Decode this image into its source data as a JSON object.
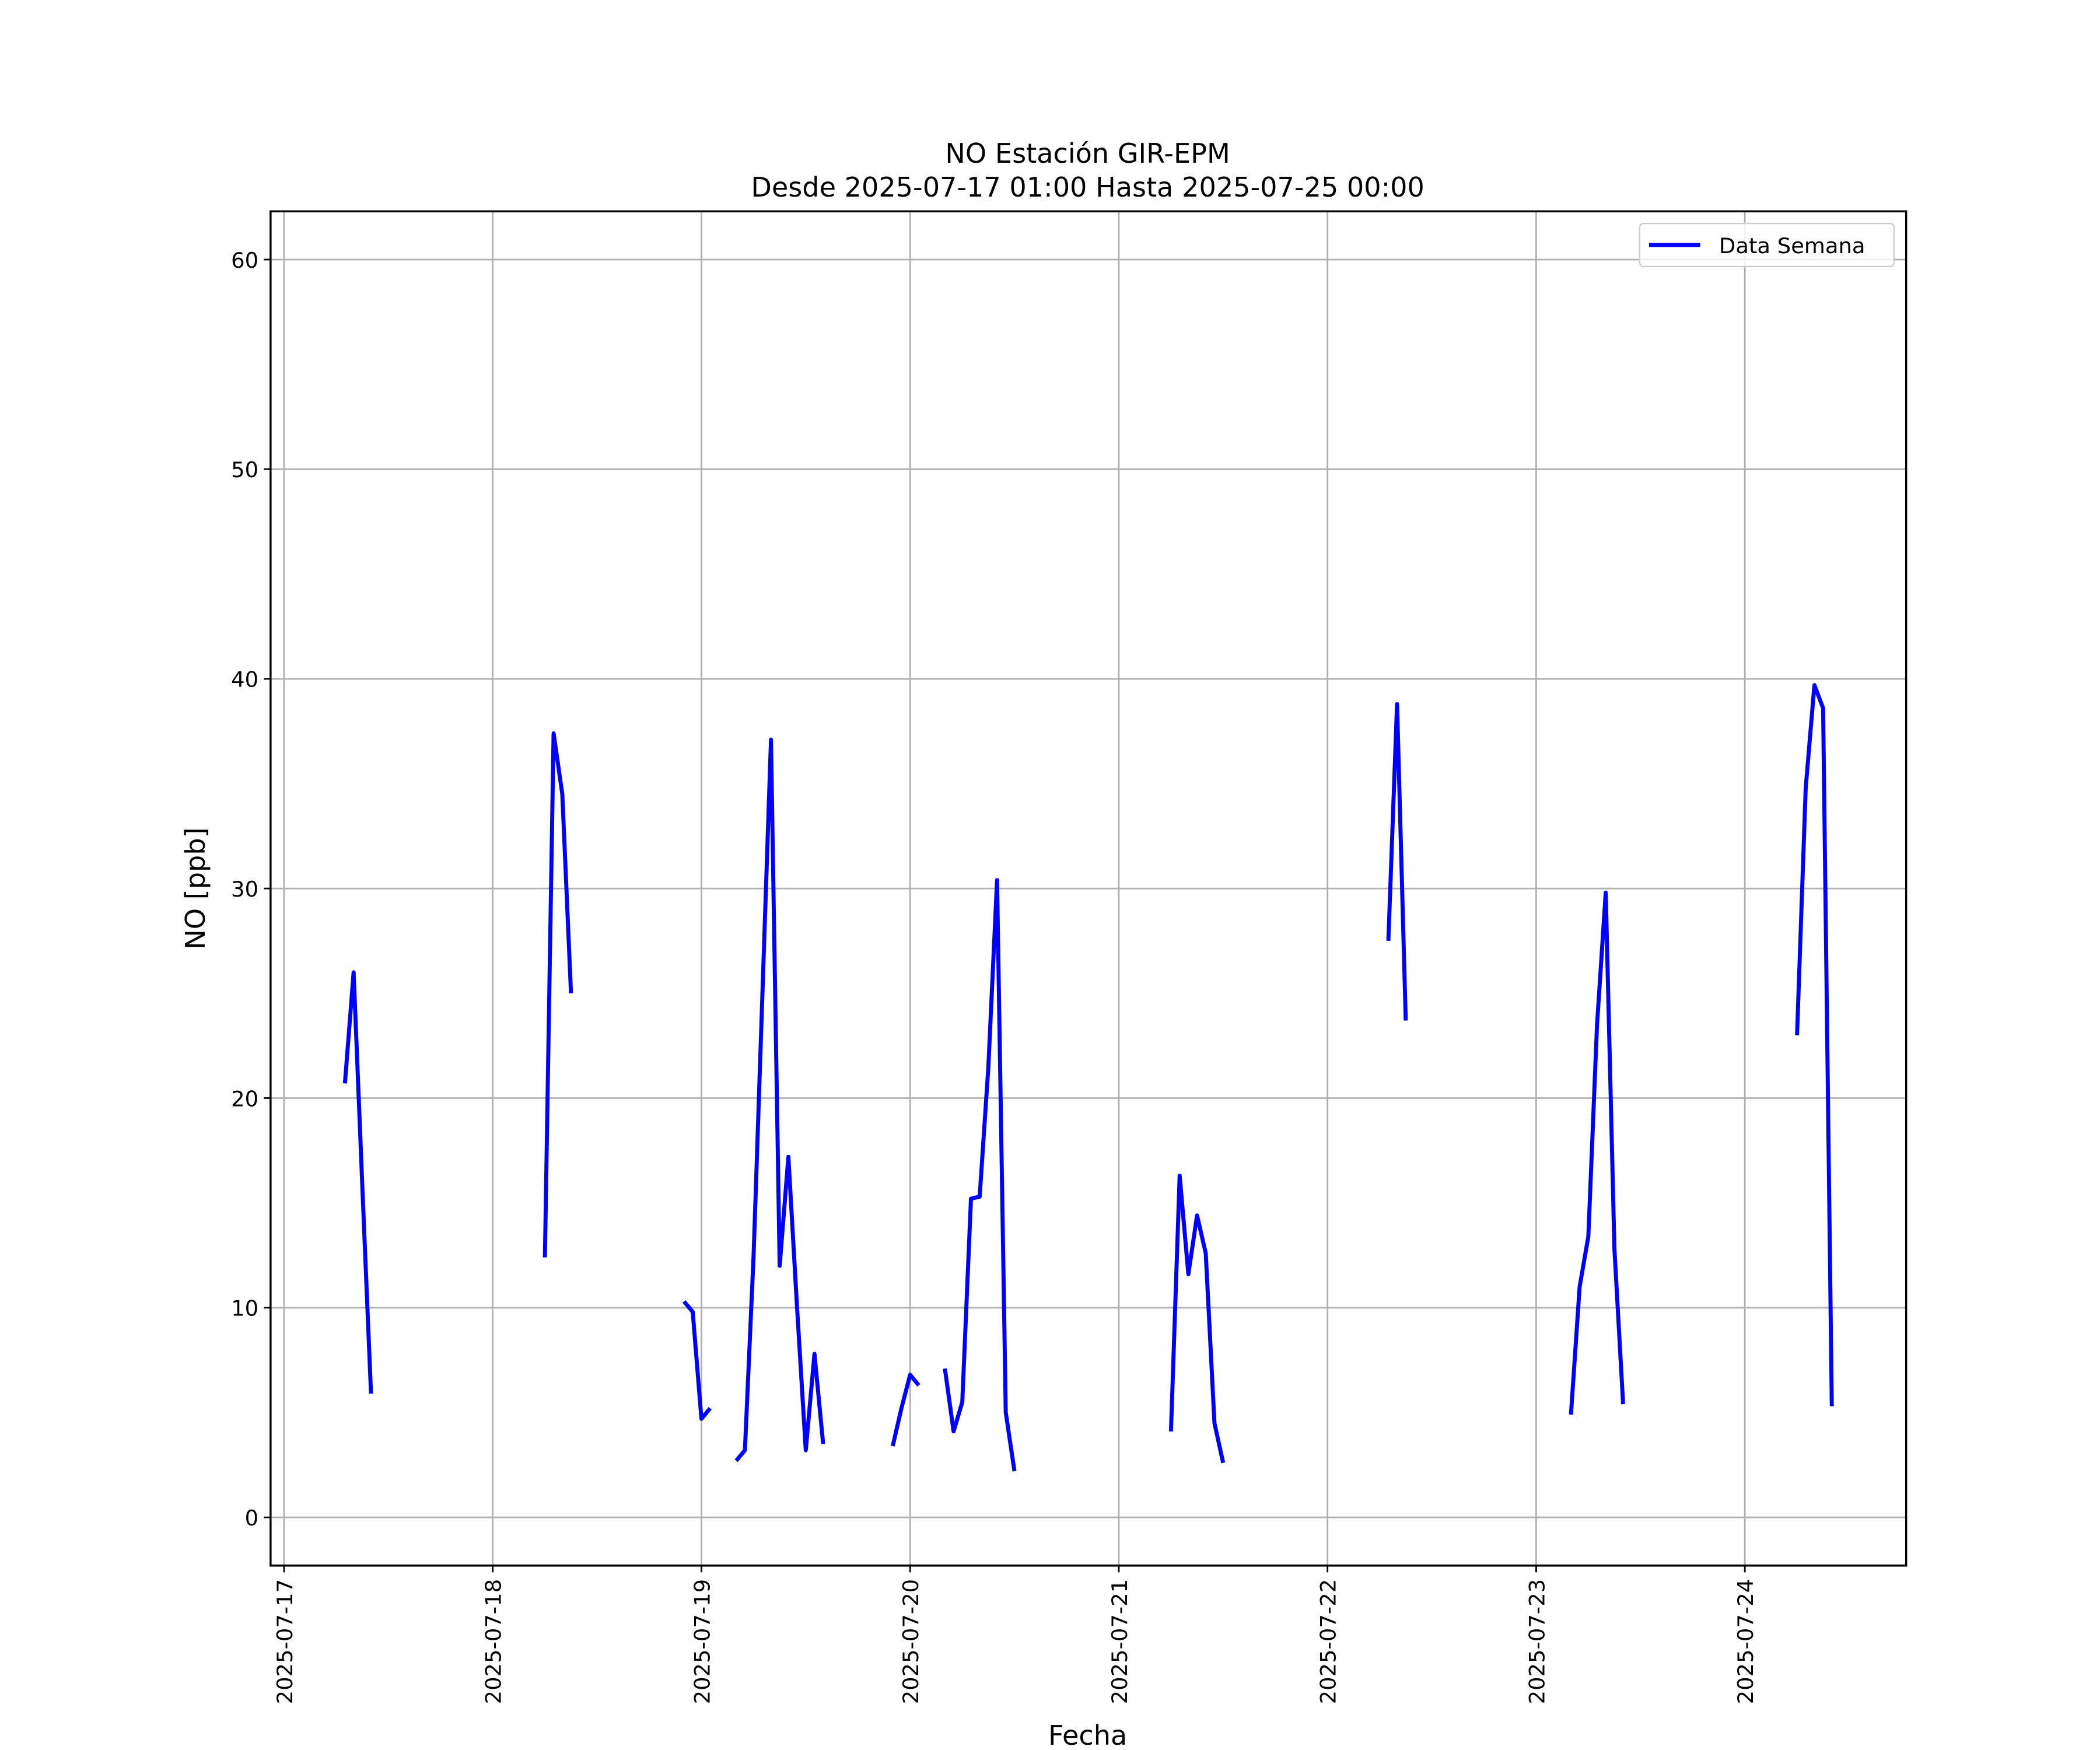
{
  "chart_data": {
    "type": "line",
    "title": "NO Estación GIR-EPM",
    "subtitle": "Desde 2025-07-17 01:00 Hasta 2025-07-25 00:00",
    "xlabel": "Fecha",
    "ylabel": "NO [ppb]",
    "x": [
      "2025-07-17T07:00",
      "2025-07-17T08:00",
      "2025-07-17T09:00",
      "2025-07-17T10:00",
      "2025-07-17T11:00",
      "2025-07-18T06:00",
      "2025-07-18T07:00",
      "2025-07-18T08:00",
      "2025-07-18T09:00",
      "2025-07-18T10:00",
      "2025-07-18T22:00",
      "2025-07-18T23:00",
      "2025-07-19T00:00",
      "2025-07-19T01:00",
      "2025-07-19T02:00",
      "2025-07-19T04:00",
      "2025-07-19T05:00",
      "2025-07-19T06:00",
      "2025-07-19T07:00",
      "2025-07-19T08:00",
      "2025-07-19T09:00",
      "2025-07-19T10:00",
      "2025-07-19T11:00",
      "2025-07-19T12:00",
      "2025-07-19T13:00",
      "2025-07-19T14:00",
      "2025-07-19T15:00",
      "2025-07-19T22:00",
      "2025-07-19T23:00",
      "2025-07-20T00:00",
      "2025-07-20T01:00",
      "2025-07-20T02:00",
      "2025-07-20T04:00",
      "2025-07-20T05:00",
      "2025-07-20T06:00",
      "2025-07-20T07:00",
      "2025-07-20T08:00",
      "2025-07-20T09:00",
      "2025-07-20T10:00",
      "2025-07-20T11:00",
      "2025-07-20T12:00",
      "2025-07-20T13:00",
      "2025-07-21T06:00",
      "2025-07-21T07:00",
      "2025-07-21T08:00",
      "2025-07-21T09:00",
      "2025-07-21T10:00",
      "2025-07-21T11:00",
      "2025-07-21T12:00",
      "2025-07-21T13:00",
      "2025-07-22T07:00",
      "2025-07-22T08:00",
      "2025-07-22T09:00",
      "2025-07-22T10:00",
      "2025-07-23T04:00",
      "2025-07-23T05:00",
      "2025-07-23T06:00",
      "2025-07-23T07:00",
      "2025-07-23T08:00",
      "2025-07-23T09:00",
      "2025-07-23T10:00",
      "2025-07-23T11:00",
      "2025-07-24T06:00",
      "2025-07-24T07:00",
      "2025-07-24T08:00",
      "2025-07-24T09:00",
      "2025-07-24T10:00"
    ],
    "series": [
      {
        "name": "Data Semana",
        "color": "#0000ff",
        "values": [
          20.7,
          26.0,
          15.8,
          5.9,
          null,
          12.4,
          37.4,
          34.5,
          25.0,
          null,
          10.3,
          9.8,
          4.7,
          5.2,
          null,
          2.7,
          3.2,
          12.5,
          24.8,
          37.1,
          12.0,
          17.2,
          10.0,
          3.2,
          7.8,
          3.5,
          null,
          3.4,
          5.2,
          6.8,
          6.3,
          null,
          7.1,
          4.1,
          5.5,
          15.2,
          15.3,
          21.5,
          30.4,
          5.0,
          2.2,
          null,
          4.1,
          16.3,
          11.6,
          14.4,
          12.6,
          4.5,
          2.6,
          null,
          27.5,
          38.8,
          23.7,
          null,
          4.9,
          11.0,
          13.4,
          23.5,
          29.8,
          12.8,
          5.4,
          null,
          23.0,
          34.8,
          39.7,
          38.6,
          5.3
        ]
      }
    ],
    "xlim": [
      "2025-07-16T22:27",
      "2025-07-24T18:33"
    ],
    "xticks": [
      "2025-07-17",
      "2025-07-18",
      "2025-07-19",
      "2025-07-20",
      "2025-07-21",
      "2025-07-22",
      "2025-07-23",
      "2025-07-24"
    ],
    "ylim": [
      -2.3,
      62.3
    ],
    "yticks": [
      0,
      10,
      20,
      30,
      40,
      50,
      60
    ],
    "grid": true,
    "legend": "upper right"
  }
}
